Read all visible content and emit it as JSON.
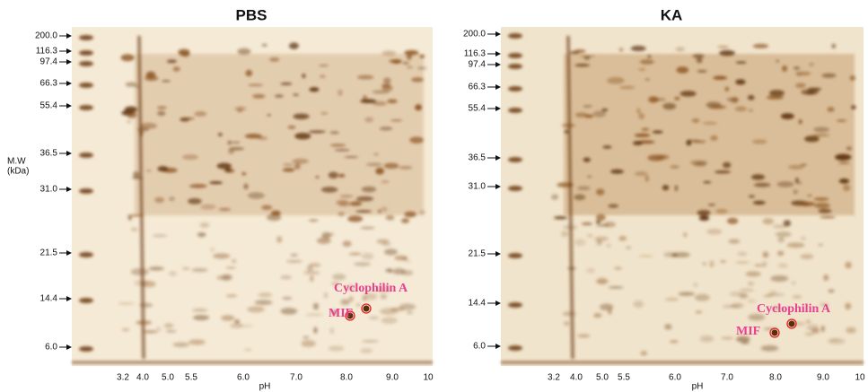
{
  "panels": [
    {
      "title": "PBS",
      "mw_axis_title": [
        "M.W",
        "(kDa)"
      ],
      "mw_labels": [
        "200.0",
        "116.3",
        "97.4",
        "66.3",
        "55.4",
        "36.5",
        "31.0",
        "21.5",
        "14.4",
        "6.0"
      ],
      "ph_labels": [
        "3.2",
        "4.0",
        "5.0",
        "5.5",
        "6.0",
        "7.0",
        "8.0",
        "9.0",
        "10"
      ],
      "ph_title": "pH",
      "annotations": [
        "Cyclophilin A",
        "MIF"
      ]
    },
    {
      "title": "KA",
      "mw_labels": [
        "200.0",
        "116.3",
        "97.4",
        "66.3",
        "55.4",
        "36.5",
        "31.0",
        "21.5",
        "14.4",
        "6.0"
      ],
      "ph_labels": [
        "3.2",
        "4.0",
        "5.0",
        "5.5",
        "6.0",
        "7.0",
        "8.0",
        "9.0",
        "10"
      ],
      "ph_title": "pH",
      "annotations": [
        "Cyclophilin A",
        "MIF"
      ]
    }
  ]
}
